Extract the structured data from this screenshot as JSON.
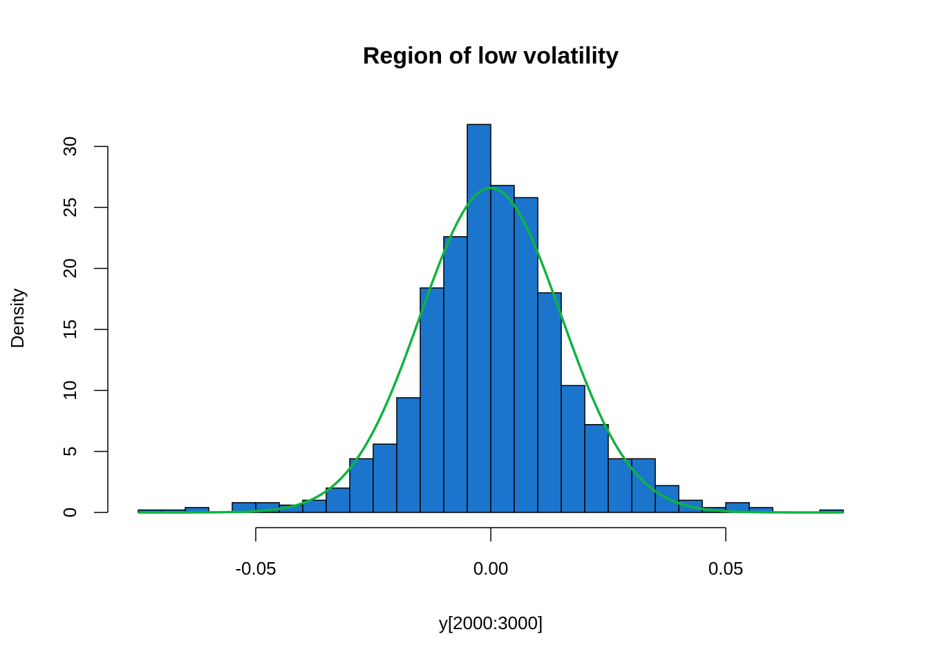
{
  "chart_data": {
    "type": "bar",
    "subtype": "histogram",
    "title": "Region of low volatility",
    "xlabel": "y[2000:3000]",
    "ylabel": "Density",
    "xlim": [
      -0.075,
      0.075
    ],
    "ylim": [
      0,
      32
    ],
    "x_ticks": [
      -0.05,
      0.0,
      0.05
    ],
    "x_tick_labels": [
      "-0.05",
      "0.00",
      "0.05"
    ],
    "y_ticks": [
      0,
      5,
      10,
      15,
      20,
      25,
      30
    ],
    "y_tick_labels": [
      "0",
      "5",
      "10",
      "15",
      "20",
      "25",
      "30"
    ],
    "bin_width": 0.005,
    "bin_edges": [
      -0.075,
      -0.07,
      -0.065,
      -0.06,
      -0.055,
      -0.05,
      -0.045,
      -0.04,
      -0.035,
      -0.03,
      -0.025,
      -0.02,
      -0.015,
      -0.01,
      -0.005,
      0.0,
      0.005,
      0.01,
      0.015,
      0.02,
      0.025,
      0.03,
      0.035,
      0.04,
      0.045,
      0.05,
      0.055,
      0.06,
      0.065,
      0.07,
      0.075
    ],
    "values": [
      0.2,
      0.2,
      0.4,
      0,
      0.8,
      0.8,
      0.6,
      1.0,
      2.0,
      4.4,
      5.6,
      9.4,
      18.4,
      22.6,
      31.8,
      26.8,
      25.8,
      18.0,
      10.4,
      7.2,
      4.4,
      4.4,
      2.2,
      1.0,
      0.4,
      0.8,
      0.4,
      0,
      0,
      0.2
    ],
    "density_curve": {
      "distribution": "normal",
      "mean": 0.0,
      "sd": 0.015
    },
    "grid": false,
    "colors": {
      "bar_fill": "#1c75cd",
      "curve": "#0db440"
    }
  }
}
